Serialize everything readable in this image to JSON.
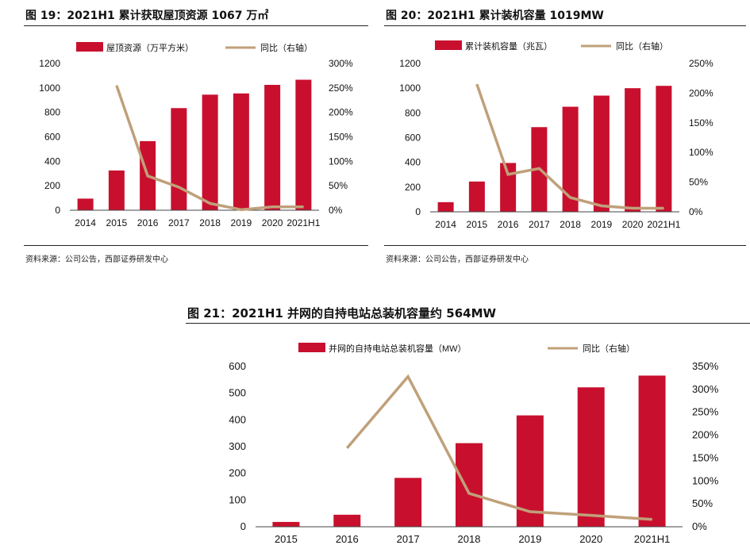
{
  "charts": [
    {
      "title": "图 19：2021H1 累计获取屋顶资源 1067 万㎡",
      "source": "资料来源：公司公告，西部证券研发中心"
    },
    {
      "title": "图 20：2021H1 累计装机容量 1019MW",
      "source": "资料来源：公司公告，西部证券研发中心"
    },
    {
      "title": "图 21：2021H1 并网的自持电站总装机容量约 564MW"
    }
  ],
  "colors": {
    "bar": "#c8102e",
    "line": "#c0a07a"
  },
  "chart_data": [
    {
      "type": "bar",
      "categories": [
        "2014",
        "2015",
        "2016",
        "2017",
        "2018",
        "2019",
        "2020",
        "2021H1"
      ],
      "series": [
        {
          "name": "屋顶资源（万平方米）",
          "type": "bar",
          "axis": "left",
          "values": [
            95,
            325,
            565,
            835,
            945,
            955,
            1025,
            1067
          ]
        },
        {
          "name": "同比（右轴）",
          "type": "line",
          "axis": "right",
          "values": [
            null,
            2.55,
            0.7,
            0.47,
            0.14,
            0.01,
            0.07,
            0.07
          ]
        }
      ],
      "y_left": {
        "min": 0,
        "max": 1200,
        "ticks": [
          0,
          200,
          400,
          600,
          800,
          1000,
          1200
        ]
      },
      "y_right": {
        "min": 0,
        "max": 3.0,
        "ticks": [
          "0%",
          "50%",
          "100%",
          "150%",
          "200%",
          "250%",
          "300%"
        ]
      },
      "legend": "top"
    },
    {
      "type": "bar",
      "categories": [
        "2014",
        "2015",
        "2016",
        "2017",
        "2018",
        "2019",
        "2020",
        "2021H1"
      ],
      "series": [
        {
          "name": "累计装机容量（兆瓦）",
          "type": "bar",
          "axis": "left",
          "values": [
            78,
            245,
            395,
            685,
            850,
            940,
            1000,
            1019
          ]
        },
        {
          "name": "同比（右轴）",
          "type": "line",
          "axis": "right",
          "values": [
            null,
            2.15,
            0.63,
            0.73,
            0.24,
            0.1,
            0.06,
            0.06
          ]
        }
      ],
      "y_left": {
        "min": 0,
        "max": 1200,
        "ticks": [
          0,
          200,
          400,
          600,
          800,
          1000,
          1200
        ]
      },
      "y_right": {
        "min": 0,
        "max": 2.5,
        "ticks": [
          "0%",
          "50%",
          "100%",
          "150%",
          "200%",
          "250%"
        ]
      },
      "legend": "top"
    },
    {
      "type": "bar",
      "categories": [
        "2015",
        "2016",
        "2017",
        "2018",
        "2019",
        "2020",
        "2021H1"
      ],
      "series": [
        {
          "name": "并网的自持电站总装机容量（MW）",
          "type": "bar",
          "axis": "left",
          "values": [
            18,
            45,
            183,
            313,
            417,
            522,
            566
          ]
        },
        {
          "name": "同比（右轴）",
          "type": "line",
          "axis": "right",
          "values": [
            null,
            1.72,
            3.28,
            0.73,
            0.33,
            0.25,
            0.16
          ]
        }
      ],
      "y_left": {
        "min": 0,
        "max": 600,
        "ticks": [
          0,
          100,
          200,
          300,
          400,
          500,
          600
        ]
      },
      "y_right": {
        "min": 0,
        "max": 3.5,
        "ticks": [
          "0%",
          "50%",
          "100%",
          "150%",
          "200%",
          "250%",
          "300%",
          "350%"
        ]
      },
      "legend": "top"
    }
  ]
}
